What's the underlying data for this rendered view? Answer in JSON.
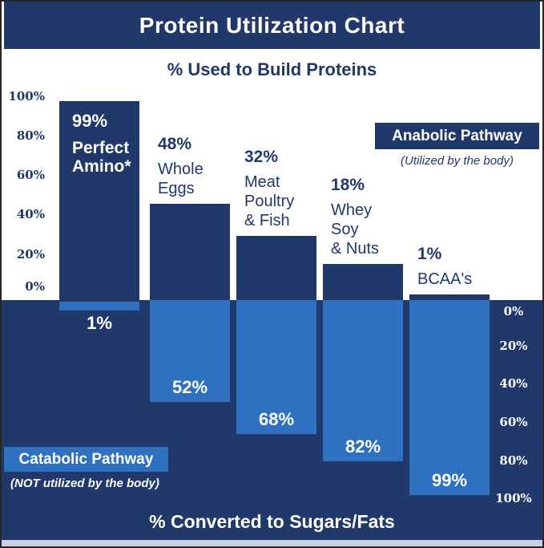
{
  "title": "Protein Utilization Chart",
  "subtitle_top": "% Used to Build Proteins",
  "subtitle_bottom": "% Converted to Sugars/Fats",
  "badges": {
    "anabolic": {
      "label": "Anabolic Pathway",
      "caption": "(Utilized by the body)"
    },
    "catabolic": {
      "label": "Catabolic Pathway",
      "caption": "(NOT utilized by the body)"
    }
  },
  "axes": {
    "left_ticks": [
      "100%",
      "80%",
      "60%",
      "40%",
      "20%",
      "0%"
    ],
    "right_ticks": [
      "0%",
      "20%",
      "40%",
      "60%",
      "80%",
      "100%"
    ]
  },
  "colors": {
    "navy": "#21386B",
    "light_blue": "#2E71C1",
    "background": "#FFFFFF",
    "bottom_strip": "#C8D2E4"
  },
  "chart_data": {
    "type": "bar",
    "orientation": "diverging-vertical",
    "title": "Protein Utilization Chart",
    "top_axis_label": "% Used to Build Proteins",
    "bottom_axis_label": "% Converted to Sugars/Fats",
    "axis_range_up": [
      0,
      100
    ],
    "axis_range_down": [
      0,
      100
    ],
    "grid": false,
    "categories": [
      "Perfect Amino*",
      "Whole Eggs",
      "Meat Poultry & Fish",
      "Whey Soy & Nuts",
      "BCAA's"
    ],
    "category_label_lines": [
      [
        "Perfect",
        "Amino*"
      ],
      [
        "Whole",
        "Eggs"
      ],
      [
        "Meat",
        "Poultry",
        "& Fish"
      ],
      [
        "Whey",
        "Soy",
        "& Nuts"
      ],
      [
        "BCAA's"
      ]
    ],
    "series": [
      {
        "name": "Anabolic Pathway — % Used to Build Proteins",
        "values": [
          99,
          48,
          32,
          18,
          1
        ]
      },
      {
        "name": "Catabolic Pathway — % Converted to Sugars/Fats",
        "values": [
          1,
          52,
          68,
          82,
          99
        ]
      }
    ],
    "value_labels": {
      "up": [
        "99%",
        "48%",
        "32%",
        "18%",
        "1%"
      ],
      "down": [
        "1%",
        "52%",
        "68%",
        "82%",
        "99%"
      ]
    }
  }
}
